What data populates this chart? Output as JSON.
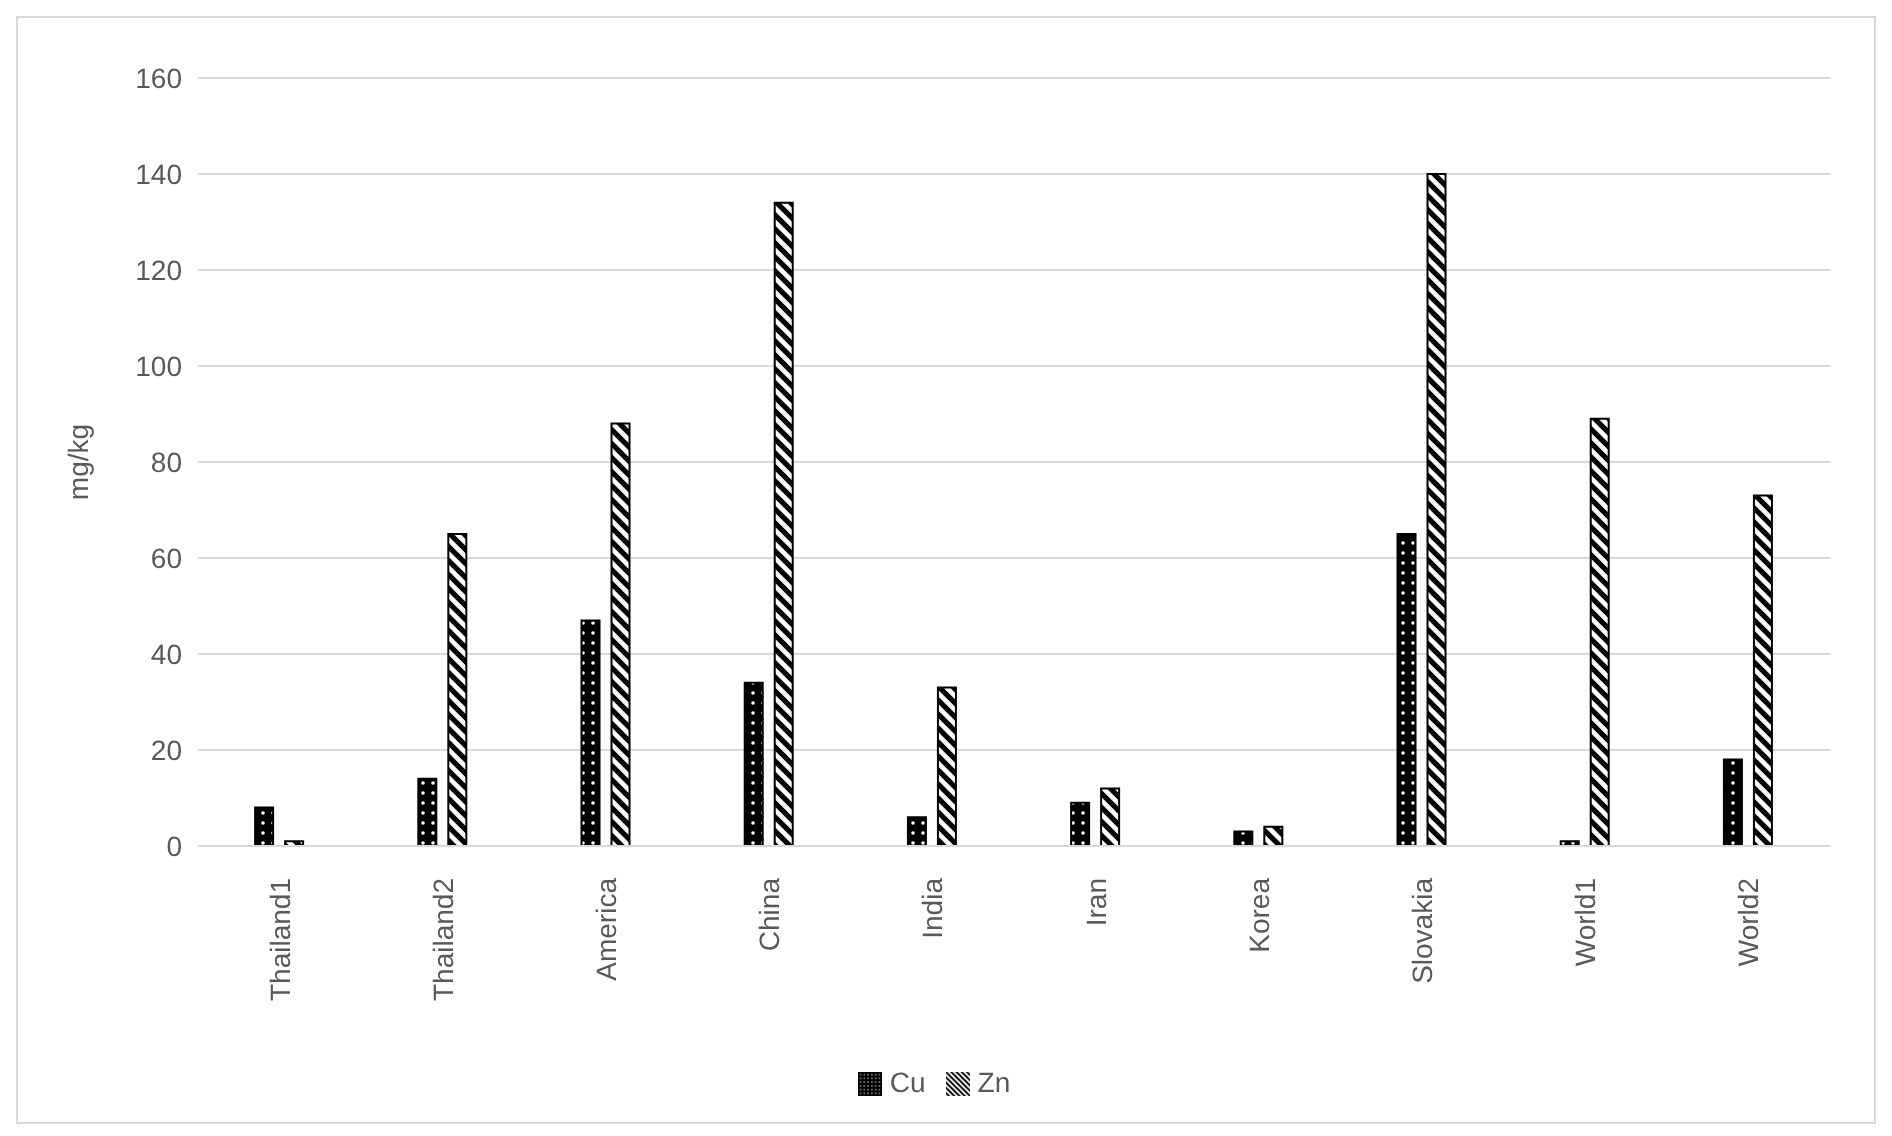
{
  "chart_data": {
    "type": "bar",
    "ylabel": "mg/kg",
    "categories": [
      "Thailand1",
      "Thailand2",
      "America",
      "China",
      "India",
      "Iran",
      "Korea",
      "Slovakia",
      "World1",
      "World2"
    ],
    "series": [
      {
        "name": "Cu",
        "color": "#000000",
        "values": [
          8,
          14,
          47,
          34,
          6,
          9,
          3,
          65,
          1,
          18
        ]
      },
      {
        "name": "Zn",
        "color": "#000000",
        "values": [
          1,
          65,
          88,
          134,
          33,
          12,
          4,
          140,
          89,
          73
        ]
      }
    ],
    "ylim": [
      0,
      160
    ],
    "yticks": [
      0,
      20,
      40,
      60,
      80,
      100,
      120,
      140,
      160
    ],
    "grid": "y",
    "legend": "bottom"
  }
}
